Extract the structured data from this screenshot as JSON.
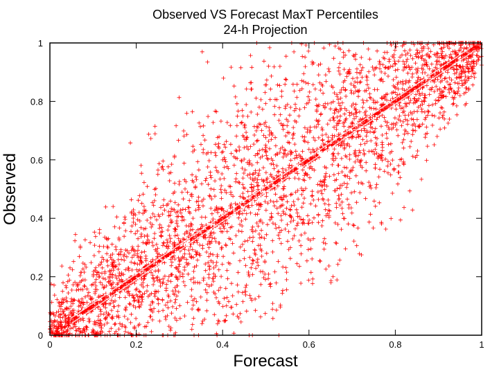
{
  "chart_data": {
    "type": "scatter",
    "title": "Observed VS Forecast MaxT Percentiles",
    "subtitle": "24-h Projection",
    "xlabel": "Forecast",
    "ylabel": "Observed",
    "xlim": [
      0,
      1
    ],
    "ylim": [
      0,
      1
    ],
    "xticks": [
      "0",
      "0.2",
      "0.4",
      "0.6",
      "0.8",
      "1"
    ],
    "yticks": [
      "0",
      "0.2",
      "0.4",
      "0.6",
      "0.8",
      "1"
    ],
    "marker": "+",
    "color": "#ff0000",
    "grid": false,
    "description_points": [
      {
        "series": "Observed vs Forecast",
        "relationship": "dense cloud centered on y = x line with spread widening toward mid-range",
        "approx_points": 20000
      }
    ]
  }
}
